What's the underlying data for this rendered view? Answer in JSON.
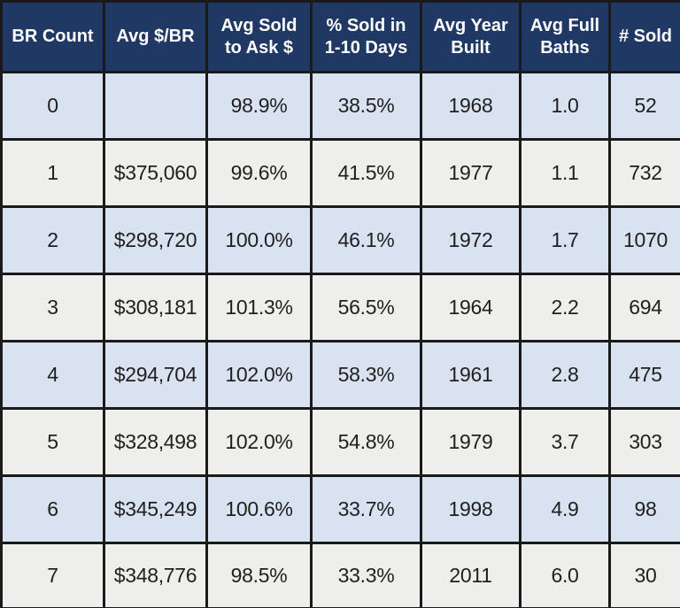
{
  "table": {
    "columns": [
      {
        "id": "br-count",
        "label": "BR Count"
      },
      {
        "id": "avg-price-per-br",
        "label": "Avg $/BR"
      },
      {
        "id": "avg-sold-to-ask",
        "label": "Avg Sold\nto Ask $"
      },
      {
        "id": "pct-sold-1-10-days",
        "label": "% Sold in\n1-10 Days"
      },
      {
        "id": "avg-year-built",
        "label": "Avg Year\nBuilt"
      },
      {
        "id": "avg-full-baths",
        "label": "Avg Full\nBaths"
      },
      {
        "id": "num-sold",
        "label": "# Sold"
      }
    ],
    "rows": [
      [
        "0",
        "",
        "98.9%",
        "38.5%",
        "1968",
        "1.0",
        "52"
      ],
      [
        "1",
        "$375,060",
        "99.6%",
        "41.5%",
        "1977",
        "1.1",
        "732"
      ],
      [
        "2",
        "$298,720",
        "100.0%",
        "46.1%",
        "1972",
        "1.7",
        "1070"
      ],
      [
        "3",
        "$308,181",
        "101.3%",
        "56.5%",
        "1964",
        "2.2",
        "694"
      ],
      [
        "4",
        "$294,704",
        "102.0%",
        "58.3%",
        "1961",
        "2.8",
        "475"
      ],
      [
        "5",
        "$328,498",
        "102.0%",
        "54.8%",
        "1979",
        "3.7",
        "303"
      ],
      [
        "6",
        "$345,249",
        "100.6%",
        "33.7%",
        "1998",
        "4.9",
        "98"
      ],
      [
        "7",
        "$348,776",
        "98.5%",
        "33.3%",
        "2011",
        "6.0",
        "30"
      ]
    ]
  },
  "chart_data": {
    "type": "table",
    "columns": [
      "BR Count",
      "Avg $/BR",
      "Avg Sold to Ask $",
      "% Sold in 1-10 Days",
      "Avg Year Built",
      "Avg Full Baths",
      "# Sold"
    ],
    "records": [
      {
        "br_count": 0,
        "avg_price_per_br": null,
        "avg_sold_to_ask_pct": 98.9,
        "pct_sold_1_10_days": 38.5,
        "avg_year_built": 1968,
        "avg_full_baths": 1.0,
        "num_sold": 52
      },
      {
        "br_count": 1,
        "avg_price_per_br": 375060,
        "avg_sold_to_ask_pct": 99.6,
        "pct_sold_1_10_days": 41.5,
        "avg_year_built": 1977,
        "avg_full_baths": 1.1,
        "num_sold": 732
      },
      {
        "br_count": 2,
        "avg_price_per_br": 298720,
        "avg_sold_to_ask_pct": 100.0,
        "pct_sold_1_10_days": 46.1,
        "avg_year_built": 1972,
        "avg_full_baths": 1.7,
        "num_sold": 1070
      },
      {
        "br_count": 3,
        "avg_price_per_br": 308181,
        "avg_sold_to_ask_pct": 101.3,
        "pct_sold_1_10_days": 56.5,
        "avg_year_built": 1964,
        "avg_full_baths": 2.2,
        "num_sold": 694
      },
      {
        "br_count": 4,
        "avg_price_per_br": 294704,
        "avg_sold_to_ask_pct": 102.0,
        "pct_sold_1_10_days": 58.3,
        "avg_year_built": 1961,
        "avg_full_baths": 2.8,
        "num_sold": 475
      },
      {
        "br_count": 5,
        "avg_price_per_br": 328498,
        "avg_sold_to_ask_pct": 102.0,
        "pct_sold_1_10_days": 54.8,
        "avg_year_built": 1979,
        "avg_full_baths": 3.7,
        "num_sold": 303
      },
      {
        "br_count": 6,
        "avg_price_per_br": 345249,
        "avg_sold_to_ask_pct": 100.6,
        "pct_sold_1_10_days": 33.7,
        "avg_year_built": 1998,
        "avg_full_baths": 4.9,
        "num_sold": 98
      },
      {
        "br_count": 7,
        "avg_price_per_br": 348776,
        "avg_sold_to_ask_pct": 98.5,
        "pct_sold_1_10_days": 33.3,
        "avg_year_built": 2011,
        "avg_full_baths": 6.0,
        "num_sold": 30
      }
    ]
  },
  "colors": {
    "header_bg": "#1f3864",
    "header_text": "#ffffff",
    "row_alt_blue": "#d9e2f0",
    "row_alt_gray": "#eeeeec",
    "border": "#1a1a1a",
    "data_text": "#1f1f1f"
  }
}
